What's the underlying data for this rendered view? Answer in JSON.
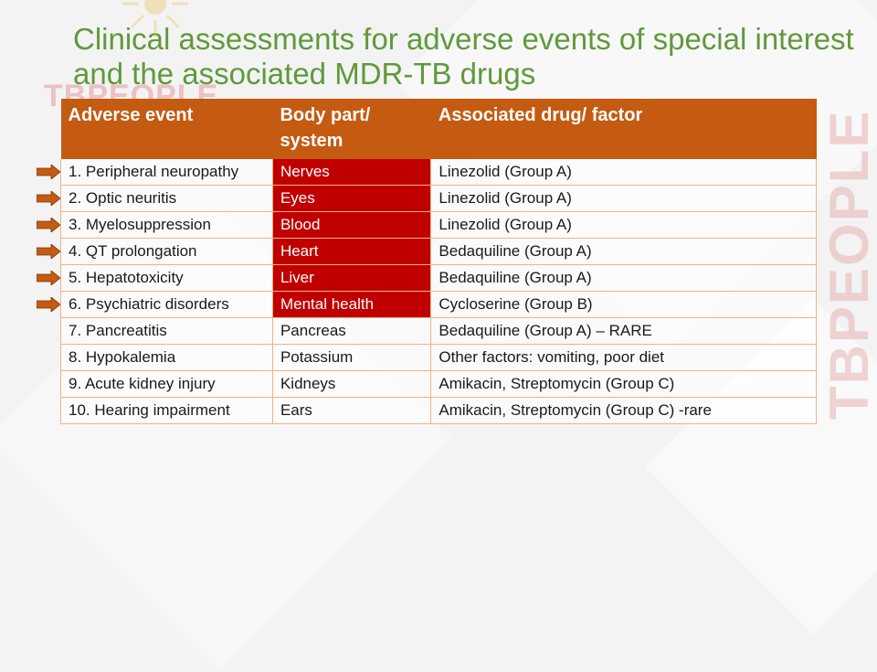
{
  "slide": {
    "title": "Clinical assessments for adverse events of special interest and the associated MDR-TB drugs",
    "watermark_text": "TBPEOPLE",
    "logo_text": "TBPEOPLE"
  },
  "table": {
    "headers": [
      "Adverse event",
      "Body part/ system",
      "Associated drug/ factor"
    ],
    "header_color": "#c55a11",
    "highlight_color": "#c00000",
    "arrow_color": "#c55a11",
    "rows": [
      {
        "event": "1.   Peripheral neuropathy",
        "body_part": "Nerves",
        "drug": "Linezolid (Group A)",
        "highlighted": true,
        "arrow": true
      },
      {
        "event": "2.   Optic neuritis",
        "body_part": "Eyes",
        "drug": "Linezolid (Group A)",
        "highlighted": true,
        "arrow": true
      },
      {
        "event": "3.   Myelosuppression",
        "body_part": "Blood",
        "drug": "Linezolid (Group A)",
        "highlighted": true,
        "arrow": true
      },
      {
        "event": "4.  QT prolongation",
        "body_part": "Heart",
        "drug": "Bedaquiline (Group A)",
        "highlighted": true,
        "arrow": true
      },
      {
        "event": "5.  Hepatotoxicity",
        "body_part": "Liver",
        "drug": "Bedaquiline (Group A)",
        "highlighted": true,
        "arrow": true
      },
      {
        "event": "6.  Psychiatric disorders",
        "body_part": "Mental health",
        "drug": "Cycloserine (Group B)",
        "highlighted": true,
        "arrow": true
      },
      {
        "event": "7.   Pancreatitis",
        "body_part": "Pancreas",
        "drug": "Bedaquiline (Group A) – RARE",
        "highlighted": false,
        "arrow": false
      },
      {
        "event": "8.   Hypokalemia",
        "body_part": "Potassium",
        "drug": "Other factors: vomiting, poor diet",
        "highlighted": false,
        "arrow": false
      },
      {
        "event": "9.   Acute kidney injury",
        "body_part": "Kidneys",
        "drug": "Amikacin, Streptomycin  (Group C)",
        "highlighted": false,
        "arrow": false
      },
      {
        "event": "10. Hearing impairment",
        "body_part": "Ears",
        "drug": "Amikacin, Streptomycin  (Group C) -rare",
        "highlighted": false,
        "arrow": false
      }
    ]
  }
}
